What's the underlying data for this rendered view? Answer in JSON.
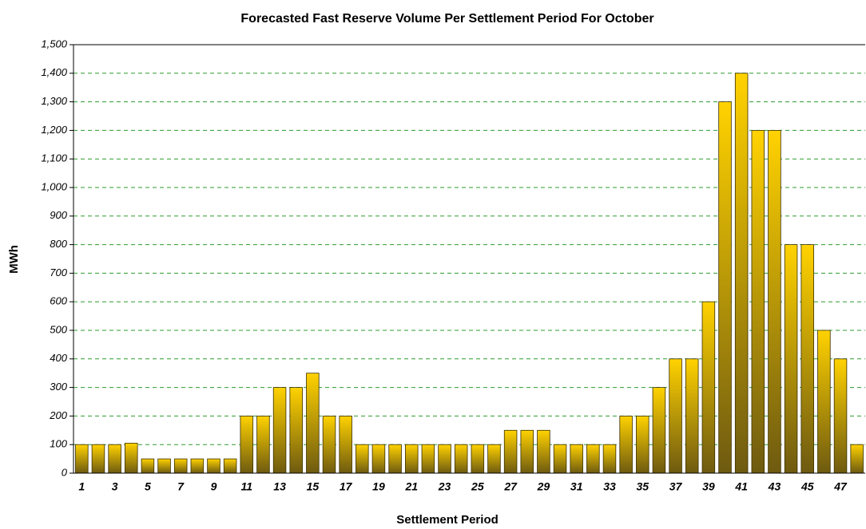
{
  "chart_data": {
    "type": "bar",
    "title": "Forecasted Fast Reserve Volume Per Settlement Period For October",
    "x_label": "Settlement Period",
    "y_label": "MWh",
    "categories": [
      "1",
      null,
      "3",
      null,
      "5",
      null,
      "7",
      null,
      "9",
      null,
      "11",
      null,
      "13",
      null,
      "15",
      null,
      "17",
      null,
      "19",
      null,
      "21",
      null,
      "23",
      null,
      "25",
      null,
      "27",
      null,
      "29",
      null,
      "31",
      null,
      "33",
      null,
      "35",
      null,
      "37",
      null,
      "39",
      null,
      "41",
      null,
      "43",
      null,
      "45",
      null,
      "47",
      null
    ],
    "values": [
      100,
      100,
      100,
      105,
      50,
      50,
      50,
      50,
      50,
      50,
      200,
      200,
      300,
      300,
      350,
      200,
      200,
      100,
      100,
      100,
      100,
      100,
      100,
      100,
      100,
      100,
      150,
      150,
      150,
      100,
      100,
      100,
      100,
      200,
      200,
      300,
      400,
      400,
      600,
      1300,
      1400,
      1200,
      1200,
      800,
      800,
      500,
      400,
      100
    ],
    "color": "#ffd200",
    "ylim": [
      0,
      1500
    ],
    "yticks": [
      0,
      100,
      200,
      300,
      400,
      500,
      600,
      700,
      800,
      900,
      {
        "value": 1000,
        "label": "1,000"
      },
      {
        "value": 1100,
        "label": "1,100"
      },
      {
        "value": 1200,
        "label": "1,200"
      },
      {
        "value": 1300,
        "label": "1,300"
      },
      {
        "value": 1400,
        "label": "1,400"
      },
      {
        "value": 1500,
        "label": "1,500"
      }
    ],
    "grid": true
  }
}
